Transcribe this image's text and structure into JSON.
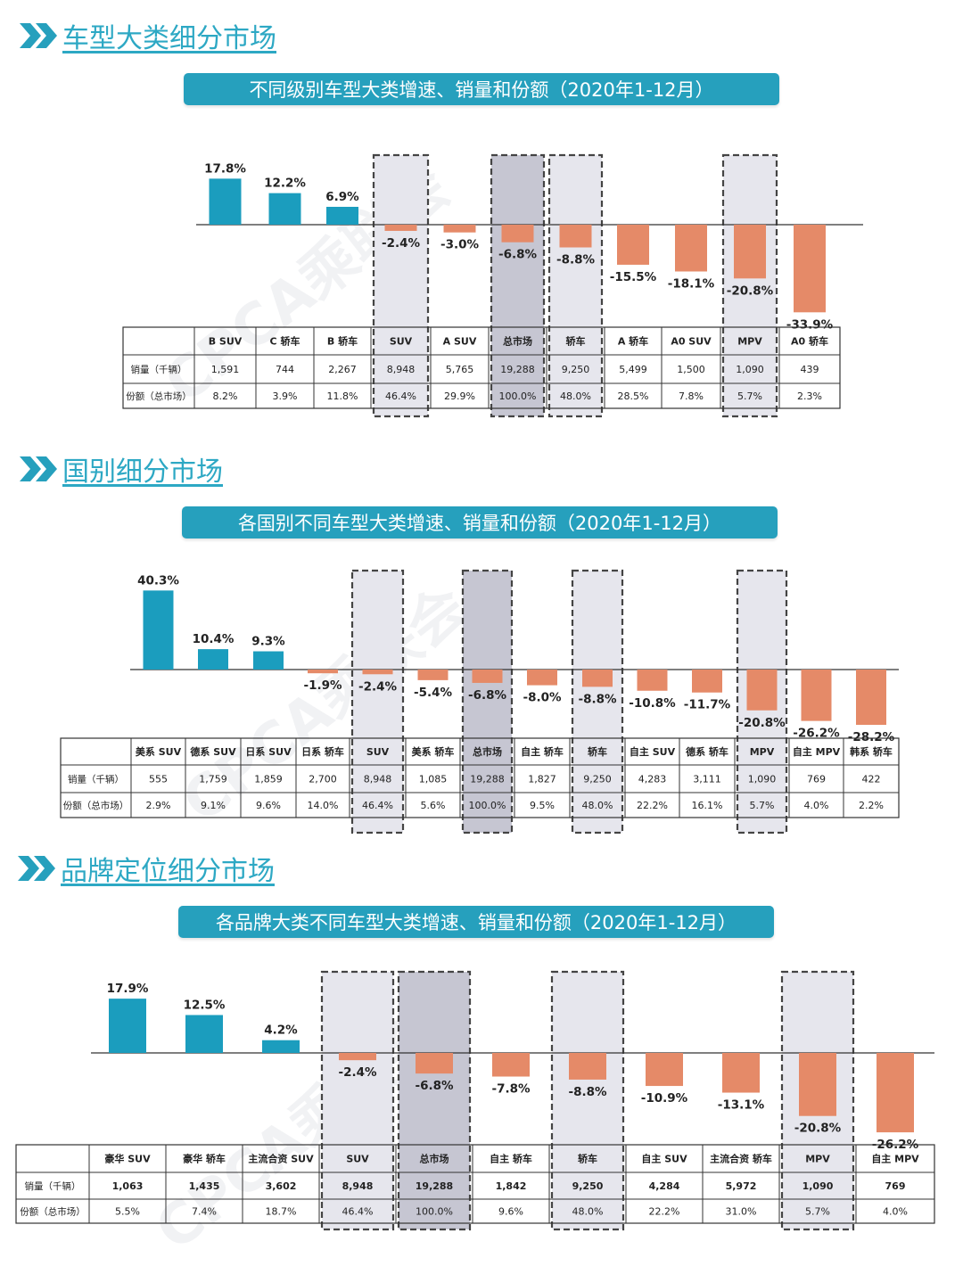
{
  "colors": {
    "positive": "#1b9dbe",
    "negative": "#e58a68",
    "highlight_fill": "#e6e6ed",
    "total_fill": "#c6c6d2",
    "accent": "#26a0bd"
  },
  "icons": {
    "header": "double-chevron-right-icon"
  },
  "watermark": "CPCA乘联会",
  "sections": [
    {
      "title": "车型大类细分市场",
      "chart_data": {
        "type": "bar",
        "title": "不同级别车型大类增速、销量和份额（2020年1-12月）",
        "categories": [
          "B SUV",
          "C 轿车",
          "B 轿车",
          "SUV",
          "A SUV",
          "总市场",
          "轿车",
          "A 轿车",
          "A0 SUV",
          "MPV",
          "A0 轿车"
        ],
        "values": [
          17.8,
          12.2,
          6.9,
          -2.4,
          -3.0,
          -6.8,
          -8.8,
          -15.5,
          -18.1,
          -20.8,
          -33.9
        ],
        "value_labels": [
          "17.8%",
          "12.2%",
          "6.9%",
          "-2.4%",
          "-3.0%",
          "-6.8%",
          "-8.8%",
          "-15.5%",
          "-18.1%",
          "-20.8%",
          "-33.9%"
        ],
        "table_rows": [
          {
            "label": "销量（千辆）",
            "values": [
              "1,591",
              "744",
              "2,267",
              "8,948",
              "5,765",
              "19,288",
              "9,250",
              "5,499",
              "1,500",
              "1,090",
              "439"
            ]
          },
          {
            "label": "份额（总市场）",
            "values": [
              "8.2%",
              "3.9%",
              "11.8%",
              "46.4%",
              "29.9%",
              "100.0%",
              "48.0%",
              "28.5%",
              "7.8%",
              "5.7%",
              "2.3%"
            ]
          }
        ],
        "highlight": [
          "SUV",
          "轿车",
          "MPV"
        ],
        "total": "总市场"
      }
    },
    {
      "title": "国别细分市场",
      "chart_data": {
        "type": "bar",
        "title": "各国别不同车型大类增速、销量和份额（2020年1-12月）",
        "categories": [
          "美系 SUV",
          "德系 SUV",
          "日系 SUV",
          "日系 轿车",
          "SUV",
          "美系 轿车",
          "总市场",
          "自主 轿车",
          "轿车",
          "自主 SUV",
          "德系 轿车",
          "MPV",
          "自主 MPV",
          "韩系 轿车"
        ],
        "values": [
          40.3,
          10.4,
          9.3,
          -1.9,
          -2.4,
          -5.4,
          -6.8,
          -8.0,
          -8.8,
          -10.8,
          -11.7,
          -20.8,
          -26.2,
          -28.2
        ],
        "value_labels": [
          "40.3%",
          "10.4%",
          "9.3%",
          "-1.9%",
          "-2.4%",
          "-5.4%",
          "-6.8%",
          "-8.0%",
          "-8.8%",
          "-10.8%",
          "-11.7%",
          "-20.8%",
          "-26.2%",
          "-28.2%"
        ],
        "table_rows": [
          {
            "label": "销量（千辆）",
            "values": [
              "555",
              "1,759",
              "1,859",
              "2,700",
              "8,948",
              "1,085",
              "19,288",
              "1,827",
              "9,250",
              "4,283",
              "3,111",
              "1,090",
              "769",
              "422"
            ]
          },
          {
            "label": "份额（总市场）",
            "values": [
              "2.9%",
              "9.1%",
              "9.6%",
              "14.0%",
              "46.4%",
              "5.6%",
              "100.0%",
              "9.5%",
              "48.0%",
              "22.2%",
              "16.1%",
              "5.7%",
              "4.0%",
              "2.2%"
            ]
          }
        ],
        "highlight": [
          "SUV",
          "轿车",
          "MPV"
        ],
        "total": "总市场"
      }
    },
    {
      "title": "品牌定位细分市场",
      "chart_data": {
        "type": "bar",
        "title": "各品牌大类不同车型大类增速、销量和份额（2020年1-12月）",
        "categories": [
          "豪华 SUV",
          "豪华 轿车",
          "主流合资 SUV",
          "SUV",
          "总市场",
          "自主 轿车",
          "轿车",
          "自主 SUV",
          "主流合资 轿车",
          "MPV",
          "自主 MPV"
        ],
        "values": [
          17.9,
          12.5,
          4.2,
          -2.4,
          -6.8,
          -7.8,
          -8.8,
          -10.9,
          -13.1,
          -20.8,
          -26.2
        ],
        "value_labels": [
          "17.9%",
          "12.5%",
          "4.2%",
          "-2.4%",
          "-6.8%",
          "-7.8%",
          "-8.8%",
          "-10.9%",
          "-13.1%",
          "-20.8%",
          "-26.2%"
        ],
        "table_rows": [
          {
            "label": "销量（千辆）",
            "values": [
              "1,063",
              "1,435",
              "3,602",
              "8,948",
              "19,288",
              "1,842",
              "9,250",
              "4,284",
              "5,972",
              "1,090",
              "769"
            ]
          },
          {
            "label": "份额（总市场）",
            "values": [
              "5.5%",
              "7.4%",
              "18.7%",
              "46.4%",
              "100.0%",
              "9.6%",
              "48.0%",
              "22.2%",
              "31.0%",
              "5.7%",
              "4.0%"
            ]
          }
        ],
        "highlight": [
          "SUV",
          "轿车",
          "MPV"
        ],
        "total": "总市场"
      }
    }
  ]
}
